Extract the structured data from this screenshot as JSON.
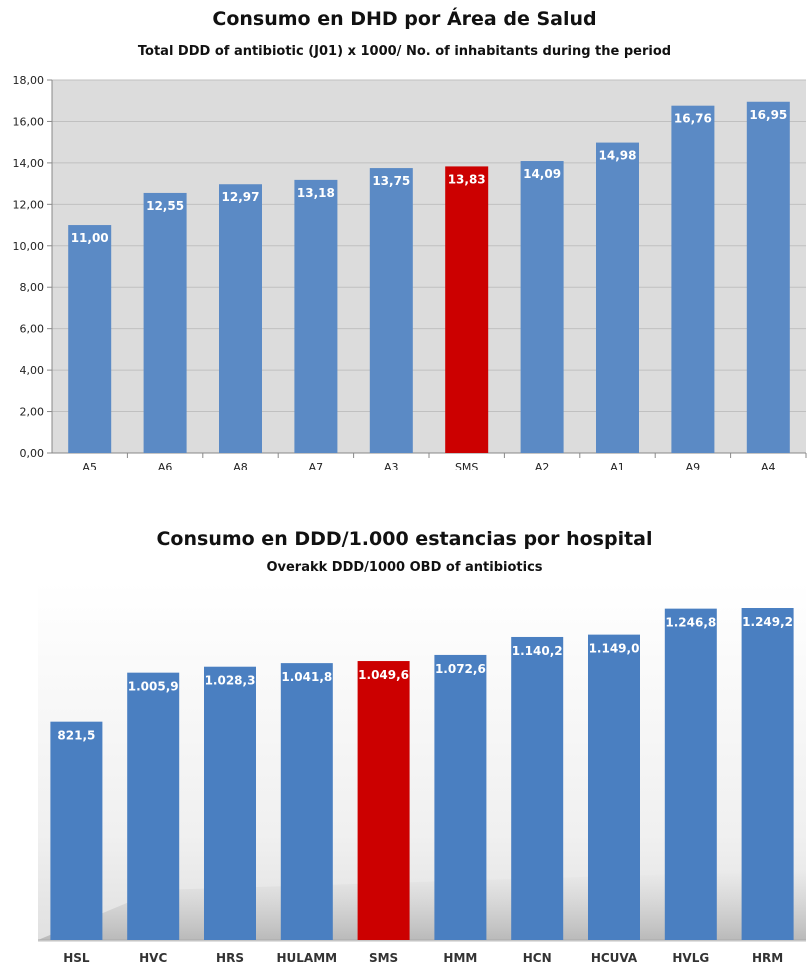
{
  "chart_data": [
    {
      "type": "bar",
      "title": "Consumo en DHD por Área de Salud",
      "subtitle": "Total DDD of antibiotic (J01) x 1000/ No. of inhabitants during the period",
      "categories": [
        "A5",
        "A6",
        "A8",
        "A7",
        "A3",
        "SMS",
        "A2",
        "A1",
        "A9",
        "A4"
      ],
      "values": [
        11.0,
        12.55,
        12.97,
        13.18,
        13.75,
        13.83,
        14.09,
        14.98,
        16.76,
        16.95
      ],
      "value_labels": [
        "11,00",
        "12,55",
        "12,97",
        "13,18",
        "13,75",
        "13,83",
        "14,09",
        "14,98",
        "16,76",
        "16,95"
      ],
      "ylim": [
        0,
        18
      ],
      "yticks": [
        "0,00",
        "2,00",
        "4,00",
        "6,00",
        "8,00",
        "10,00",
        "12,00",
        "14,00",
        "16,00",
        "18,00"
      ],
      "grid": true,
      "colors": {
        "default": "#5b8ac5",
        "highlight": "#cc0000",
        "plot_bg": "#dcdcdc",
        "grid": "#c0c0c0"
      },
      "highlight_category": "SMS"
    },
    {
      "type": "bar",
      "title": "Consumo en DDD/1.000 estancias por hospital",
      "subtitle": "Overakk DDD/1000 OBD of antibiotics",
      "categories": [
        "HSL",
        "HVC",
        "HRS",
        "HULAMM",
        "SMS",
        "HMM",
        "HCN",
        "HCUVA",
        "HVLG",
        "HRM"
      ],
      "values": [
        821.5,
        1005.9,
        1028.3,
        1041.8,
        1049.6,
        1072.6,
        1140.2,
        1149.0,
        1246.8,
        1249.2
      ],
      "value_labels": [
        "821,5",
        "1.005,9",
        "1.028,3",
        "1.041,8",
        "1.049,6",
        "1.072,6",
        "1.140,2",
        "1.149,0",
        "1.246,8",
        "1.249,2"
      ],
      "grid": false,
      "colors": {
        "default": "#4a7fc1",
        "highlight": "#cc0000",
        "plot_bg": "#f2f2f2"
      },
      "highlight_category": "SMS"
    }
  ]
}
